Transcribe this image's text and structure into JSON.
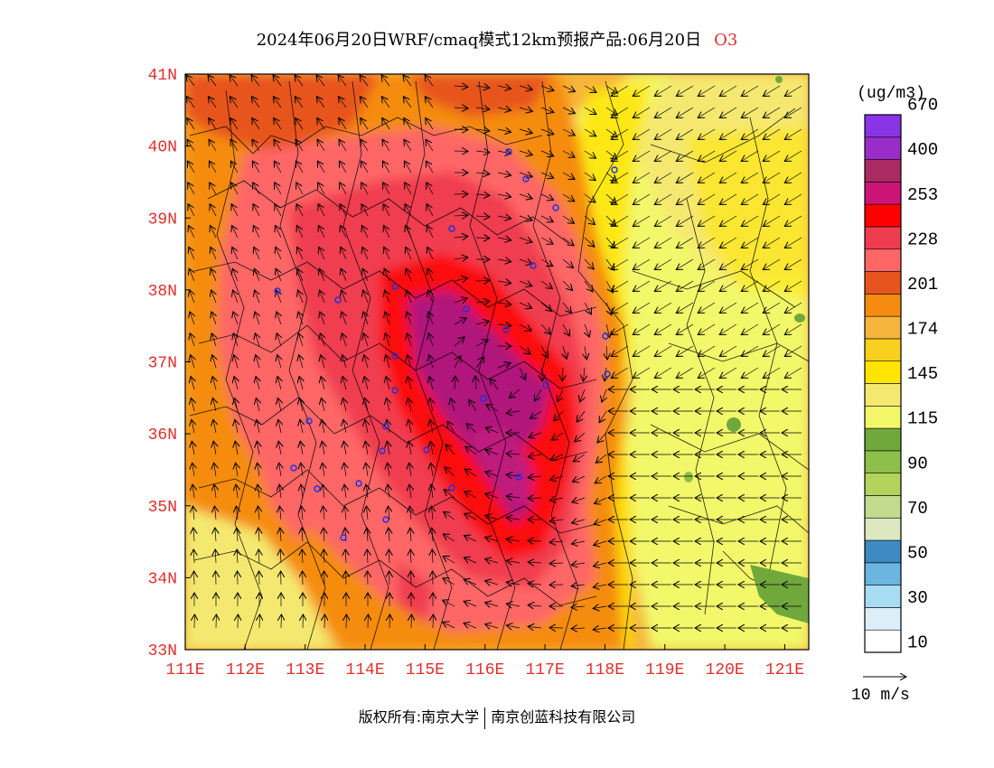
{
  "title": {
    "main": "2024年06月20日WRF/cmaq模式12km预报产品:06月20日",
    "species": "O3"
  },
  "map": {
    "lat_labels": [
      "41N",
      "40N",
      "39N",
      "38N",
      "37N",
      "36N",
      "35N",
      "34N",
      "33N"
    ],
    "lat_values": [
      41,
      40,
      39,
      38,
      37,
      36,
      35,
      34,
      33
    ],
    "lon_labels": [
      "111E",
      "112E",
      "113E",
      "114E",
      "115E",
      "116E",
      "117E",
      "118E",
      "119E",
      "120E",
      "121E"
    ],
    "lon_values": [
      111,
      112,
      113,
      114,
      115,
      116,
      117,
      118,
      119,
      120,
      121
    ],
    "lat_range": [
      33,
      41
    ],
    "lon_range": [
      111,
      121.4
    ]
  },
  "colorbar": {
    "unit": "(ug/m3)",
    "colors_bottom_to_top": [
      "#ffffff",
      "#dceef8",
      "#a8dcf3",
      "#6cb5e0",
      "#3e8ac2",
      "#dce8c0",
      "#c2dc8e",
      "#b2d45c",
      "#8cc04a",
      "#70a83c",
      "#f2f86a",
      "#f5e870",
      "#ffe400",
      "#f9d020",
      "#f5b43c",
      "#f58c10",
      "#e8541e",
      "#ff6666",
      "#f03c50",
      "#ff0000",
      "#cc1476",
      "#aa2a62",
      "#9a2cc8",
      "#8a34e8"
    ],
    "labels": [
      "10",
      "30",
      "50",
      "70",
      "90",
      "115",
      "145",
      "174",
      "201",
      "228",
      "253",
      "400",
      "670"
    ]
  },
  "wind_reference": {
    "label": "10 m/s"
  },
  "footer": {
    "copyright_left": "版权所有:南京大学",
    "copyright_right": "南京创蓝科技有限公司"
  }
}
